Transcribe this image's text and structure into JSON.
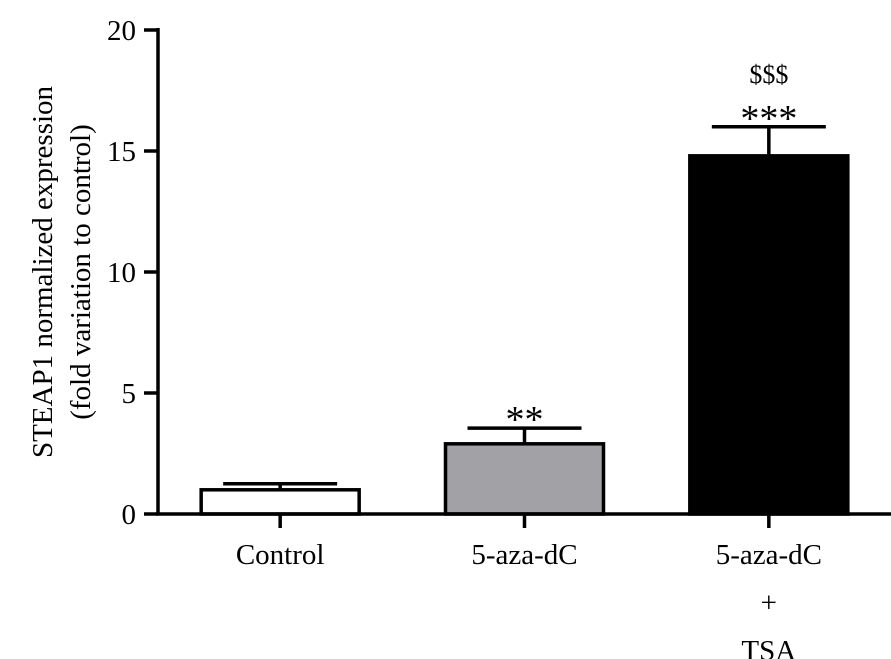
{
  "chart_data": {
    "type": "bar",
    "title": "",
    "ylabel_lines": [
      "STEAP1 normalized expression",
      "(fold variation to control)"
    ],
    "xlabel": "",
    "ylim": [
      0,
      20
    ],
    "yticks": [
      "0",
      "5",
      "10",
      "15",
      "20"
    ],
    "categories": [
      {
        "lines": [
          "Control"
        ]
      },
      {
        "lines": [
          "5-aza-dC"
        ]
      },
      {
        "lines": [
          "5-aza-dC",
          "+",
          "TSA"
        ]
      }
    ],
    "values": [
      1.0,
      2.9,
      14.8
    ],
    "errors": [
      0.25,
      0.65,
      1.2
    ],
    "colors": [
      "#ffffff",
      "#a2a1a6",
      "#000000"
    ],
    "annotations": [
      {
        "category": 1,
        "lines": [
          "**"
        ]
      },
      {
        "category": 2,
        "lines": [
          "$$$",
          "***"
        ]
      }
    ],
    "grid": false,
    "legend": false
  }
}
